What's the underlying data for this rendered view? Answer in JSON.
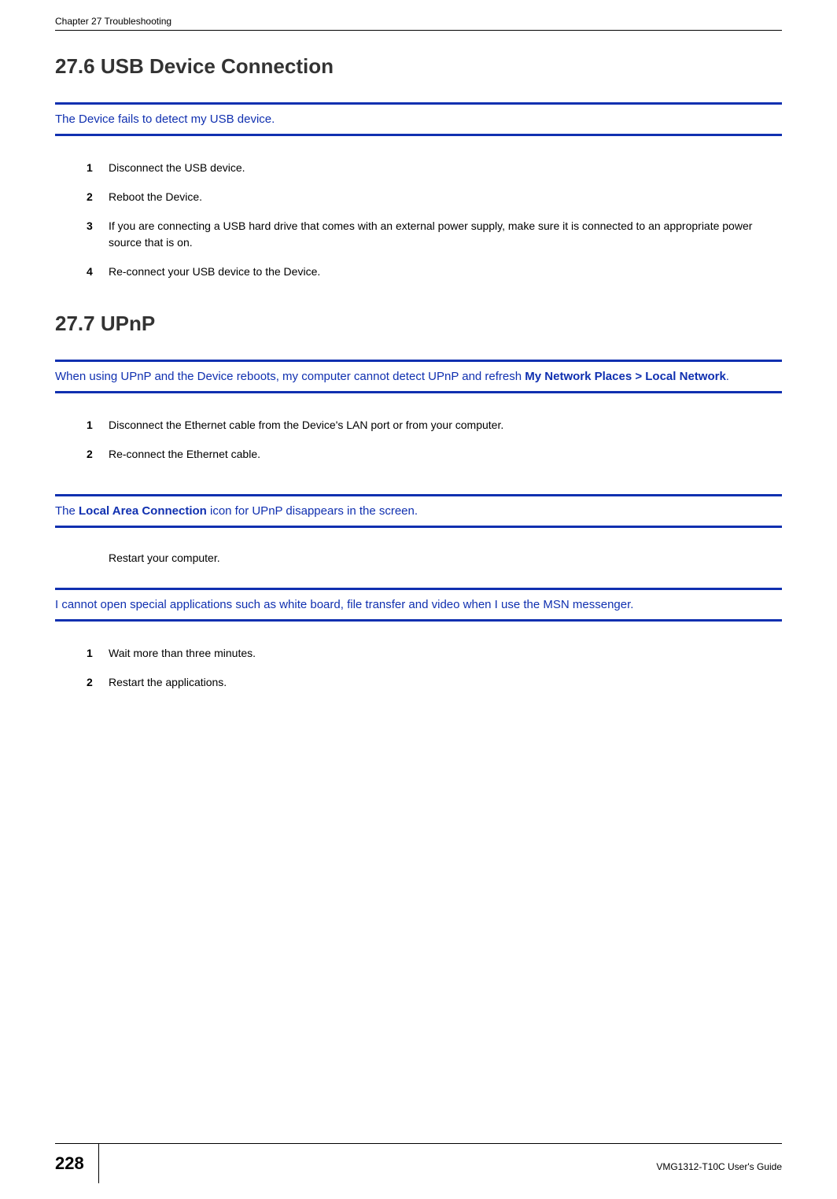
{
  "header": {
    "left": "Chapter 27 Troubleshooting"
  },
  "section1": {
    "heading": "27.6  USB Device Connection",
    "problem": "The Device fails to detect my USB device.",
    "steps": [
      "Disconnect the USB device.",
      "Reboot the Device.",
      "If you are connecting a USB hard drive that comes with an external power supply, make sure it is connected to an appropriate power source that is on.",
      "Re-connect your USB device to the Device."
    ]
  },
  "section2": {
    "heading": "27.7  UPnP",
    "problem1_pre": "When using UPnP and the Device reboots, my computer cannot detect UPnP and refresh ",
    "problem1_bold": "My Network Places > Local Network",
    "problem1_post": ".",
    "steps1": [
      "Disconnect the Ethernet cable from the Device's LAN port or from your computer.",
      "Re-connect the Ethernet cable."
    ],
    "problem2_pre": "The ",
    "problem2_bold": "Local Area Connection",
    "problem2_post": " icon for UPnP disappears in the screen.",
    "instruction2": "Restart your computer.",
    "problem3": "I cannot open special applications such as white board, file transfer and video when I use the MSN messenger.",
    "steps3": [
      "Wait more than three minutes.",
      "Restart the applications."
    ]
  },
  "footer": {
    "page_num": "228",
    "guide": "VMG1312-T10C User's Guide"
  },
  "colors": {
    "accent_blue": "#1030b0",
    "text_black": "#000000",
    "heading_gray": "#333333"
  }
}
